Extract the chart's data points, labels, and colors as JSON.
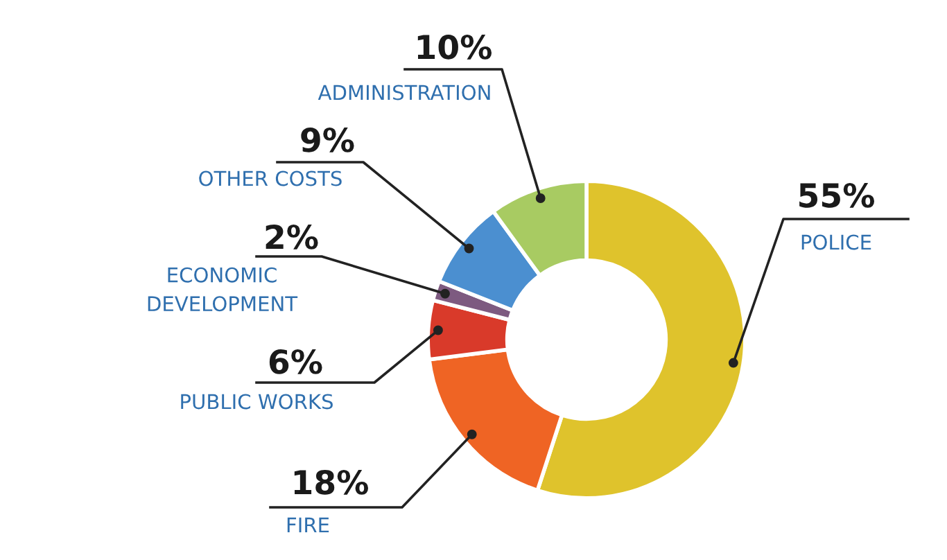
{
  "chart_data": {
    "type": "donut",
    "categories": [
      "POLICE",
      "FIRE",
      "PUBLIC WORKS",
      "ECONOMIC\nDEVELOPMENT",
      "OTHER COSTS",
      "ADMINISTRATION"
    ],
    "values": [
      55,
      18,
      6,
      2,
      9,
      10
    ],
    "colors": [
      "#dfc32c",
      "#ef6424",
      "#d93a2a",
      "#7d5a80",
      "#4b8fd0",
      "#a8cb62"
    ],
    "value_labels": [
      "55%",
      "18%",
      "6%",
      "2%",
      "9%",
      "10%"
    ]
  }
}
